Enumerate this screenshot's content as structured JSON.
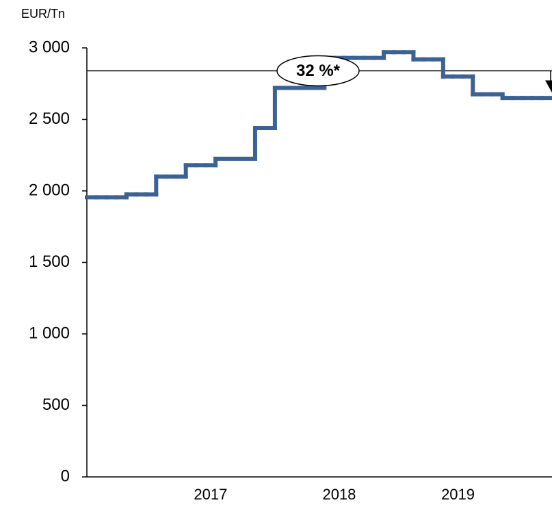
{
  "chart_data": {
    "type": "line",
    "y_label": "EUR/Tn",
    "color": "#3c6294",
    "categories": [
      null,
      null,
      null,
      null,
      null,
      null,
      null,
      null,
      null,
      null,
      null,
      null,
      "2017",
      null,
      null,
      null,
      null,
      null,
      null,
      null,
      null,
      null,
      null,
      null,
      null,
      "2018",
      null,
      null,
      null,
      null,
      null,
      null,
      null,
      null,
      null,
      null,
      null,
      "2019",
      null,
      null,
      null,
      null,
      null,
      null,
      null,
      null,
      null
    ],
    "values": [
      1955,
      1955,
      1955,
      1955,
      1975,
      1975,
      1975,
      2100,
      2100,
      2100,
      2180,
      2180,
      2180,
      2225,
      2225,
      2225,
      2225,
      2440,
      2440,
      2720,
      2720,
      2720,
      2720,
      2720,
      2930,
      2930,
      2930,
      2930,
      2930,
      2930,
      2970,
      2970,
      2970,
      2920,
      2920,
      2920,
      2800,
      2800,
      2800,
      2675,
      2675,
      2675,
      2650,
      2650,
      2650,
      2650,
      2650
    ],
    "ylim": [
      0,
      3000
    ],
    "yticks": [
      0,
      500,
      {
        "value": 1000,
        "label": "1 000"
      },
      {
        "value": 1500,
        "label": "1 500"
      },
      {
        "value": 2000,
        "label": "2 000"
      },
      {
        "value": 2500,
        "label": "2 500"
      },
      {
        "value": 3000,
        "label": "3 000"
      }
    ],
    "annotation": {
      "text": "32 %*",
      "level": 2840
    }
  }
}
